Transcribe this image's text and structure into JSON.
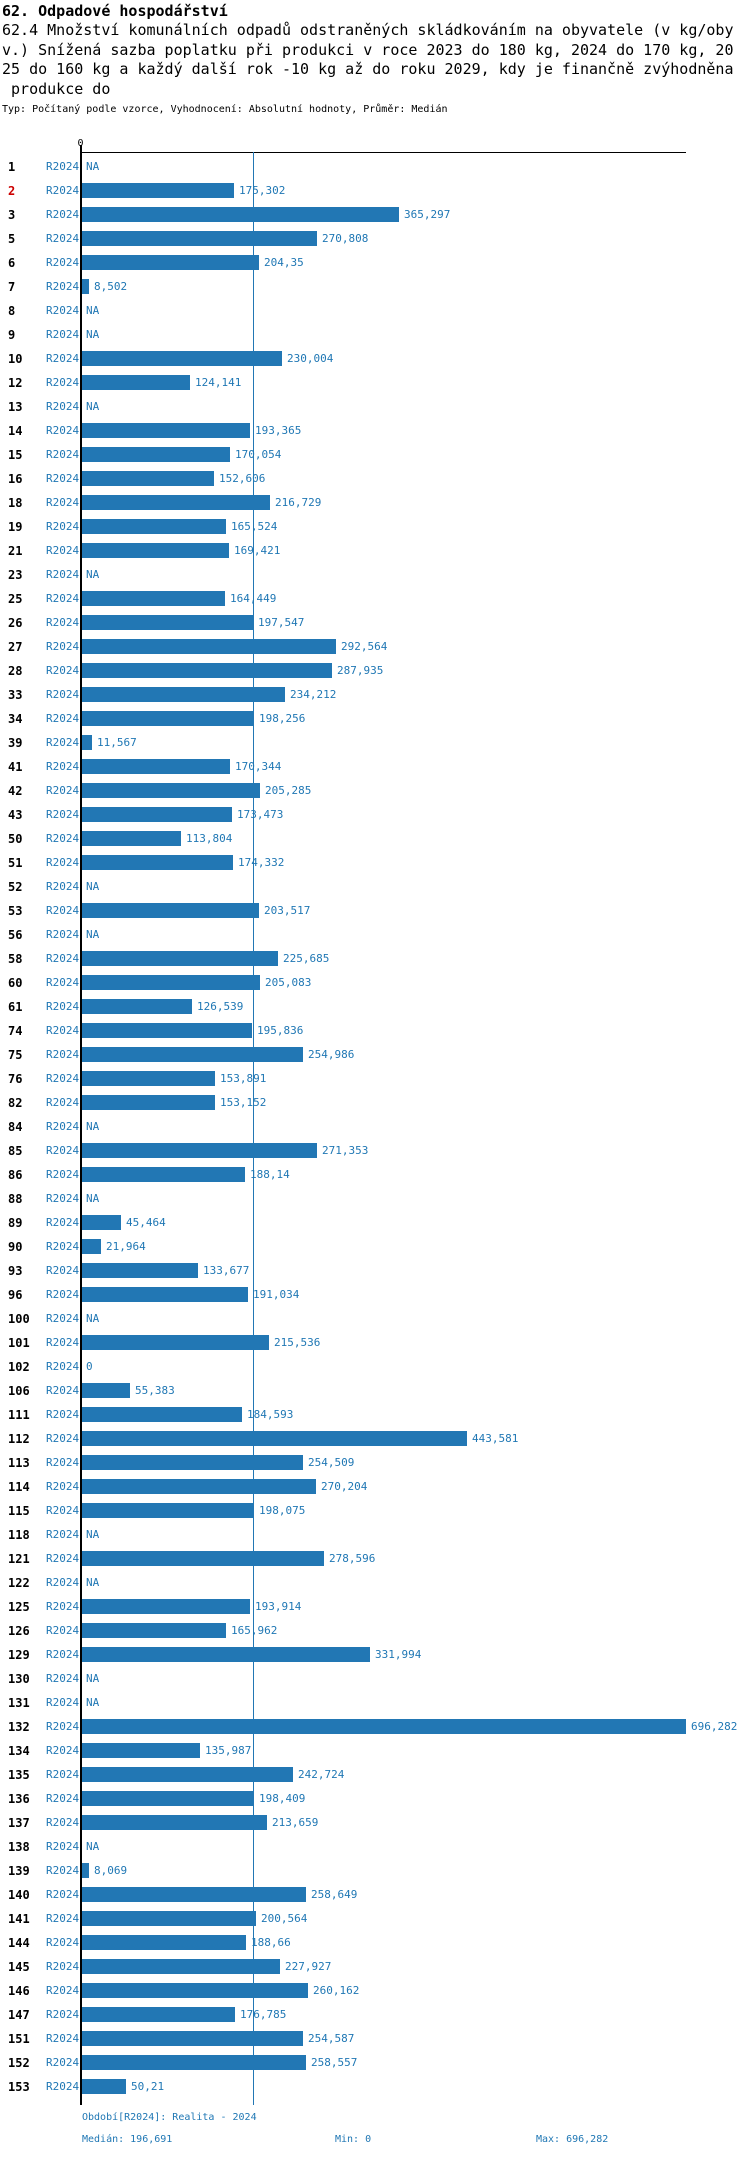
{
  "header": {
    "title": "62. Odpadové hospodářství",
    "description_lines": [
      "62.4 Množství komunálních odpadů odstraněných skládkováním na obyvatele (v kg/oby",
      "v.) Snížená sazba poplatku při produkci v roce 2023 do 180 kg, 2024 do 170 kg, 20",
      "25 do 160 kg a každý další rok -10 kg až do roku 2029, kdy je finančně zvýhodněna",
      " produkce do"
    ],
    "meta": "Typ: Počítaný podle vzorce, Vyhodnocení: Absolutní hodnoty, Průměr: Medián"
  },
  "chart_data": {
    "type": "bar",
    "orientation": "horizontal",
    "series_label": "R2024",
    "axis_top_tick": "0",
    "xlim": [
      0,
      696.282
    ],
    "median": 196.691,
    "decimal_separator": ",",
    "na_text": "NA",
    "rows": [
      {
        "id": "1",
        "value": "NA"
      },
      {
        "id": "2",
        "value": "175,302",
        "highlight": true
      },
      {
        "id": "3",
        "value": "365,297"
      },
      {
        "id": "5",
        "value": "270,808"
      },
      {
        "id": "6",
        "value": "204,35"
      },
      {
        "id": "7",
        "value": "8,502"
      },
      {
        "id": "8",
        "value": "NA"
      },
      {
        "id": "9",
        "value": "NA"
      },
      {
        "id": "10",
        "value": "230,004"
      },
      {
        "id": "12",
        "value": "124,141"
      },
      {
        "id": "13",
        "value": "NA"
      },
      {
        "id": "14",
        "value": "193,365"
      },
      {
        "id": "15",
        "value": "170,054"
      },
      {
        "id": "16",
        "value": "152,606"
      },
      {
        "id": "18",
        "value": "216,729"
      },
      {
        "id": "19",
        "value": "165,524"
      },
      {
        "id": "21",
        "value": "169,421"
      },
      {
        "id": "23",
        "value": "NA"
      },
      {
        "id": "25",
        "value": "164,449"
      },
      {
        "id": "26",
        "value": "197,547"
      },
      {
        "id": "27",
        "value": "292,564"
      },
      {
        "id": "28",
        "value": "287,935"
      },
      {
        "id": "33",
        "value": "234,212"
      },
      {
        "id": "34",
        "value": "198,256"
      },
      {
        "id": "39",
        "value": "11,567"
      },
      {
        "id": "41",
        "value": "170,344"
      },
      {
        "id": "42",
        "value": "205,285"
      },
      {
        "id": "43",
        "value": "173,473"
      },
      {
        "id": "50",
        "value": "113,804"
      },
      {
        "id": "51",
        "value": "174,332"
      },
      {
        "id": "52",
        "value": "NA"
      },
      {
        "id": "53",
        "value": "203,517"
      },
      {
        "id": "56",
        "value": "NA"
      },
      {
        "id": "58",
        "value": "225,685"
      },
      {
        "id": "60",
        "value": "205,083"
      },
      {
        "id": "61",
        "value": "126,539"
      },
      {
        "id": "74",
        "value": "195,836"
      },
      {
        "id": "75",
        "value": "254,986"
      },
      {
        "id": "76",
        "value": "153,891"
      },
      {
        "id": "82",
        "value": "153,152"
      },
      {
        "id": "84",
        "value": "NA"
      },
      {
        "id": "85",
        "value": "271,353"
      },
      {
        "id": "86",
        "value": "188,14"
      },
      {
        "id": "88",
        "value": "NA"
      },
      {
        "id": "89",
        "value": "45,464"
      },
      {
        "id": "90",
        "value": "21,964"
      },
      {
        "id": "93",
        "value": "133,677"
      },
      {
        "id": "96",
        "value": "191,034"
      },
      {
        "id": "100",
        "value": "NA"
      },
      {
        "id": "101",
        "value": "215,536"
      },
      {
        "id": "102",
        "value": "0"
      },
      {
        "id": "106",
        "value": "55,383"
      },
      {
        "id": "111",
        "value": "184,593"
      },
      {
        "id": "112",
        "value": "443,581"
      },
      {
        "id": "113",
        "value": "254,509"
      },
      {
        "id": "114",
        "value": "270,204"
      },
      {
        "id": "115",
        "value": "198,075"
      },
      {
        "id": "118",
        "value": "NA"
      },
      {
        "id": "121",
        "value": "278,596"
      },
      {
        "id": "122",
        "value": "NA"
      },
      {
        "id": "125",
        "value": "193,914"
      },
      {
        "id": "126",
        "value": "165,962"
      },
      {
        "id": "129",
        "value": "331,994"
      },
      {
        "id": "130",
        "value": "NA"
      },
      {
        "id": "131",
        "value": "NA"
      },
      {
        "id": "132",
        "value": "696,282"
      },
      {
        "id": "134",
        "value": "135,987"
      },
      {
        "id": "135",
        "value": "242,724"
      },
      {
        "id": "136",
        "value": "198,409"
      },
      {
        "id": "137",
        "value": "213,659"
      },
      {
        "id": "138",
        "value": "NA"
      },
      {
        "id": "139",
        "value": "8,069"
      },
      {
        "id": "140",
        "value": "258,649"
      },
      {
        "id": "141",
        "value": "200,564"
      },
      {
        "id": "144",
        "value": "188,66"
      },
      {
        "id": "145",
        "value": "227,927"
      },
      {
        "id": "146",
        "value": "260,162"
      },
      {
        "id": "147",
        "value": "176,785"
      },
      {
        "id": "151",
        "value": "254,587"
      },
      {
        "id": "152",
        "value": "258,557"
      },
      {
        "id": "153",
        "value": "50,21"
      }
    ]
  },
  "footer": {
    "period": "Období[R2024]: Realita - 2024",
    "median_label": "Medián: 196,691",
    "min_label": "Min: 0",
    "max_label": "Max: 696,282"
  },
  "colors": {
    "bar": "#2277b4",
    "label": "#1f77b4",
    "highlight": "#cc0000",
    "axis": "#000000",
    "median_line": "#2277b4"
  }
}
